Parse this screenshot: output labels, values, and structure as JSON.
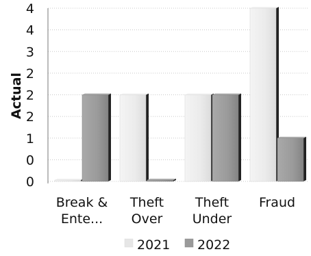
{
  "chart_data": {
    "type": "bar",
    "title": "",
    "xlabel": "",
    "ylabel": "Actual",
    "y_tick_labels": [
      "0",
      "0",
      "1",
      "2",
      "2",
      "2",
      "3",
      "4",
      "4"
    ],
    "ylim": [
      0,
      4
    ],
    "grid": true,
    "legend_position": "bottom",
    "categories": [
      "Break &\nEnte...",
      "Theft\nOver",
      "Theft\nUnder",
      "Fraud"
    ],
    "series": [
      {
        "name": "2021",
        "color": "#e6e6e6",
        "values": [
          0,
          2,
          2,
          4
        ]
      },
      {
        "name": "2022",
        "color": "#9a9a9a",
        "values": [
          2,
          0,
          2,
          1
        ]
      }
    ]
  }
}
